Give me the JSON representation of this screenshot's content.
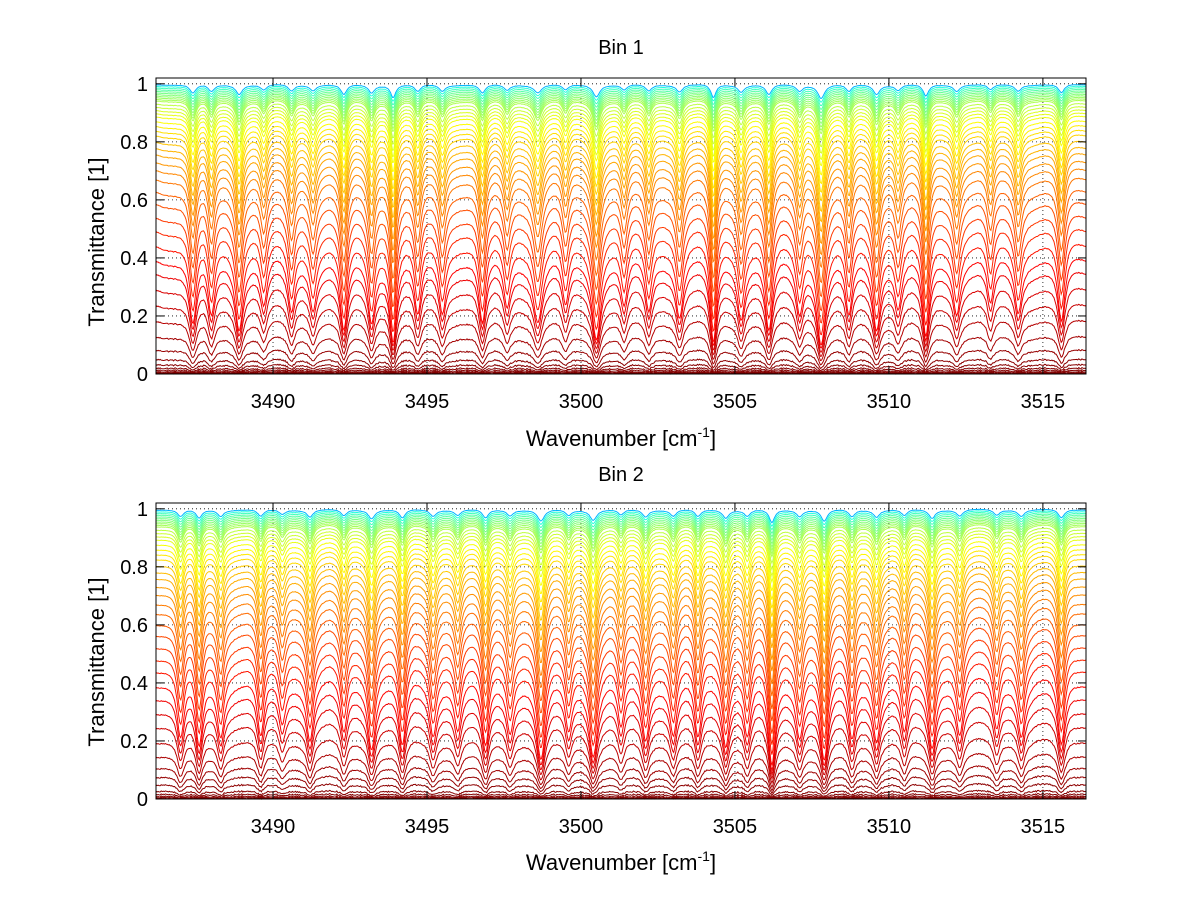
{
  "chart_data": [
    {
      "type": "line",
      "title": "Bin 1",
      "xlabel": "Wavenumber [cm",
      "xlabel_sup": "-1",
      "xlabel_end": "]",
      "ylabel": "Transmittance [1]",
      "xlim": [
        3486.2,
        3516.4
      ],
      "ylim": [
        0,
        1.02
      ],
      "xticks": [
        3490,
        3495,
        3500,
        3505,
        3510,
        3515
      ],
      "xtick_labels": [
        "3490",
        "3495",
        "3500",
        "3505",
        "3510",
        "3515"
      ],
      "yticks": [
        0,
        0.2,
        0.4,
        0.6,
        0.8,
        1
      ],
      "ytick_labels": [
        "0",
        "0.2",
        "0.4",
        "0.6",
        "0.8",
        "1"
      ],
      "grid": "dotted",
      "series_count": 45,
      "baseline_levels": [
        1.0,
        0.995,
        0.99,
        0.985,
        0.98,
        0.975,
        0.97,
        0.965,
        0.96,
        0.955,
        0.95,
        0.94,
        0.93,
        0.92,
        0.91,
        0.9,
        0.885,
        0.87,
        0.855,
        0.84,
        0.82,
        0.8,
        0.78,
        0.755,
        0.73,
        0.7,
        0.66,
        0.62,
        0.575,
        0.53,
        0.48,
        0.43,
        0.38,
        0.32,
        0.26,
        0.2,
        0.14,
        0.09,
        0.055,
        0.035,
        0.022,
        0.014,
        0.008,
        0.004,
        0.001
      ],
      "absorption_lines": [
        {
          "x": 3487.4,
          "depth": 0.55,
          "width": 0.12
        },
        {
          "x": 3488.0,
          "depth": 0.45,
          "width": 0.12
        },
        {
          "x": 3488.9,
          "depth": 0.6,
          "width": 0.12
        },
        {
          "x": 3489.7,
          "depth": 0.35,
          "width": 0.12
        },
        {
          "x": 3490.6,
          "depth": 0.4,
          "width": 0.12
        },
        {
          "x": 3491.3,
          "depth": 0.35,
          "width": 0.12
        },
        {
          "x": 3492.3,
          "depth": 0.65,
          "width": 0.12
        },
        {
          "x": 3493.2,
          "depth": 0.5,
          "width": 0.12
        },
        {
          "x": 3493.9,
          "depth": 0.8,
          "width": 0.1
        },
        {
          "x": 3494.7,
          "depth": 0.45,
          "width": 0.12
        },
        {
          "x": 3495.5,
          "depth": 0.4,
          "width": 0.12
        },
        {
          "x": 3496.8,
          "depth": 0.55,
          "width": 0.12
        },
        {
          "x": 3497.6,
          "depth": 0.35,
          "width": 0.12
        },
        {
          "x": 3498.6,
          "depth": 0.5,
          "width": 0.15
        },
        {
          "x": 3499.5,
          "depth": 0.35,
          "width": 0.12
        },
        {
          "x": 3500.5,
          "depth": 0.75,
          "width": 0.13
        },
        {
          "x": 3501.4,
          "depth": 0.35,
          "width": 0.12
        },
        {
          "x": 3502.2,
          "depth": 0.4,
          "width": 0.12
        },
        {
          "x": 3503.2,
          "depth": 0.45,
          "width": 0.12
        },
        {
          "x": 3504.3,
          "depth": 0.85,
          "width": 0.1
        },
        {
          "x": 3505.2,
          "depth": 0.45,
          "width": 0.12
        },
        {
          "x": 3506.1,
          "depth": 0.65,
          "width": 0.12
        },
        {
          "x": 3507.1,
          "depth": 0.4,
          "width": 0.12
        },
        {
          "x": 3507.8,
          "depth": 0.85,
          "width": 0.13
        },
        {
          "x": 3508.7,
          "depth": 0.45,
          "width": 0.12
        },
        {
          "x": 3509.6,
          "depth": 0.6,
          "width": 0.12
        },
        {
          "x": 3510.3,
          "depth": 0.35,
          "width": 0.12
        },
        {
          "x": 3511.2,
          "depth": 0.75,
          "width": 0.11
        },
        {
          "x": 3512.2,
          "depth": 0.4,
          "width": 0.12
        },
        {
          "x": 3513.3,
          "depth": 0.35,
          "width": 0.12
        },
        {
          "x": 3514.2,
          "depth": 0.4,
          "width": 0.12
        },
        {
          "x": 3515.6,
          "depth": 0.55,
          "width": 0.12
        }
      ]
    },
    {
      "type": "line",
      "title": "Bin 2",
      "xlabel": "Wavenumber [cm",
      "xlabel_sup": "-1",
      "xlabel_end": "]",
      "ylabel": "Transmittance [1]",
      "xlim": [
        3486.2,
        3516.4
      ],
      "ylim": [
        0,
        1.02
      ],
      "xticks": [
        3490,
        3495,
        3500,
        3505,
        3510,
        3515
      ],
      "xtick_labels": [
        "3490",
        "3495",
        "3500",
        "3505",
        "3510",
        "3515"
      ],
      "yticks": [
        0,
        0.2,
        0.4,
        0.6,
        0.8,
        1
      ],
      "ytick_labels": [
        "0",
        "0.2",
        "0.4",
        "0.6",
        "0.8",
        "1"
      ],
      "grid": "dotted",
      "series_count": 45,
      "baseline_levels": [
        1.0,
        0.995,
        0.99,
        0.985,
        0.98,
        0.975,
        0.97,
        0.965,
        0.96,
        0.955,
        0.95,
        0.94,
        0.93,
        0.92,
        0.91,
        0.895,
        0.88,
        0.865,
        0.85,
        0.83,
        0.81,
        0.79,
        0.765,
        0.74,
        0.71,
        0.68,
        0.645,
        0.61,
        0.57,
        0.53,
        0.49,
        0.44,
        0.39,
        0.335,
        0.28,
        0.22,
        0.165,
        0.12,
        0.085,
        0.055,
        0.03,
        0.018,
        0.01,
        0.005,
        0.001
      ],
      "absorption_lines": [
        {
          "x": 3487.0,
          "depth": 0.45,
          "width": 0.12
        },
        {
          "x": 3487.6,
          "depth": 0.55,
          "width": 0.12
        },
        {
          "x": 3488.3,
          "depth": 0.4,
          "width": 0.12
        },
        {
          "x": 3489.6,
          "depth": 0.45,
          "width": 0.12
        },
        {
          "x": 3490.3,
          "depth": 0.3,
          "width": 0.12
        },
        {
          "x": 3491.2,
          "depth": 0.45,
          "width": 0.12
        },
        {
          "x": 3492.3,
          "depth": 0.4,
          "width": 0.12
        },
        {
          "x": 3493.2,
          "depth": 0.55,
          "width": 0.12
        },
        {
          "x": 3494.2,
          "depth": 0.55,
          "width": 0.12
        },
        {
          "x": 3495.2,
          "depth": 0.4,
          "width": 0.12
        },
        {
          "x": 3496.0,
          "depth": 0.35,
          "width": 0.12
        },
        {
          "x": 3496.9,
          "depth": 0.55,
          "width": 0.12
        },
        {
          "x": 3497.7,
          "depth": 0.35,
          "width": 0.12
        },
        {
          "x": 3498.7,
          "depth": 0.75,
          "width": 0.14
        },
        {
          "x": 3499.6,
          "depth": 0.35,
          "width": 0.12
        },
        {
          "x": 3500.4,
          "depth": 0.65,
          "width": 0.13
        },
        {
          "x": 3501.3,
          "depth": 0.35,
          "width": 0.12
        },
        {
          "x": 3502.1,
          "depth": 0.45,
          "width": 0.12
        },
        {
          "x": 3503.0,
          "depth": 0.4,
          "width": 0.12
        },
        {
          "x": 3503.8,
          "depth": 0.45,
          "width": 0.12
        },
        {
          "x": 3504.7,
          "depth": 0.5,
          "width": 0.12
        },
        {
          "x": 3505.4,
          "depth": 0.4,
          "width": 0.12
        },
        {
          "x": 3506.2,
          "depth": 0.85,
          "width": 0.11
        },
        {
          "x": 3507.1,
          "depth": 0.4,
          "width": 0.12
        },
        {
          "x": 3507.9,
          "depth": 0.75,
          "width": 0.12
        },
        {
          "x": 3508.8,
          "depth": 0.45,
          "width": 0.12
        },
        {
          "x": 3509.6,
          "depth": 0.45,
          "width": 0.12
        },
        {
          "x": 3510.5,
          "depth": 0.4,
          "width": 0.12
        },
        {
          "x": 3511.4,
          "depth": 0.55,
          "width": 0.12
        },
        {
          "x": 3512.3,
          "depth": 0.4,
          "width": 0.12
        },
        {
          "x": 3513.5,
          "depth": 0.35,
          "width": 0.12
        },
        {
          "x": 3514.3,
          "depth": 0.4,
          "width": 0.12
        },
        {
          "x": 3515.6,
          "depth": 0.55,
          "width": 0.12
        }
      ]
    }
  ]
}
